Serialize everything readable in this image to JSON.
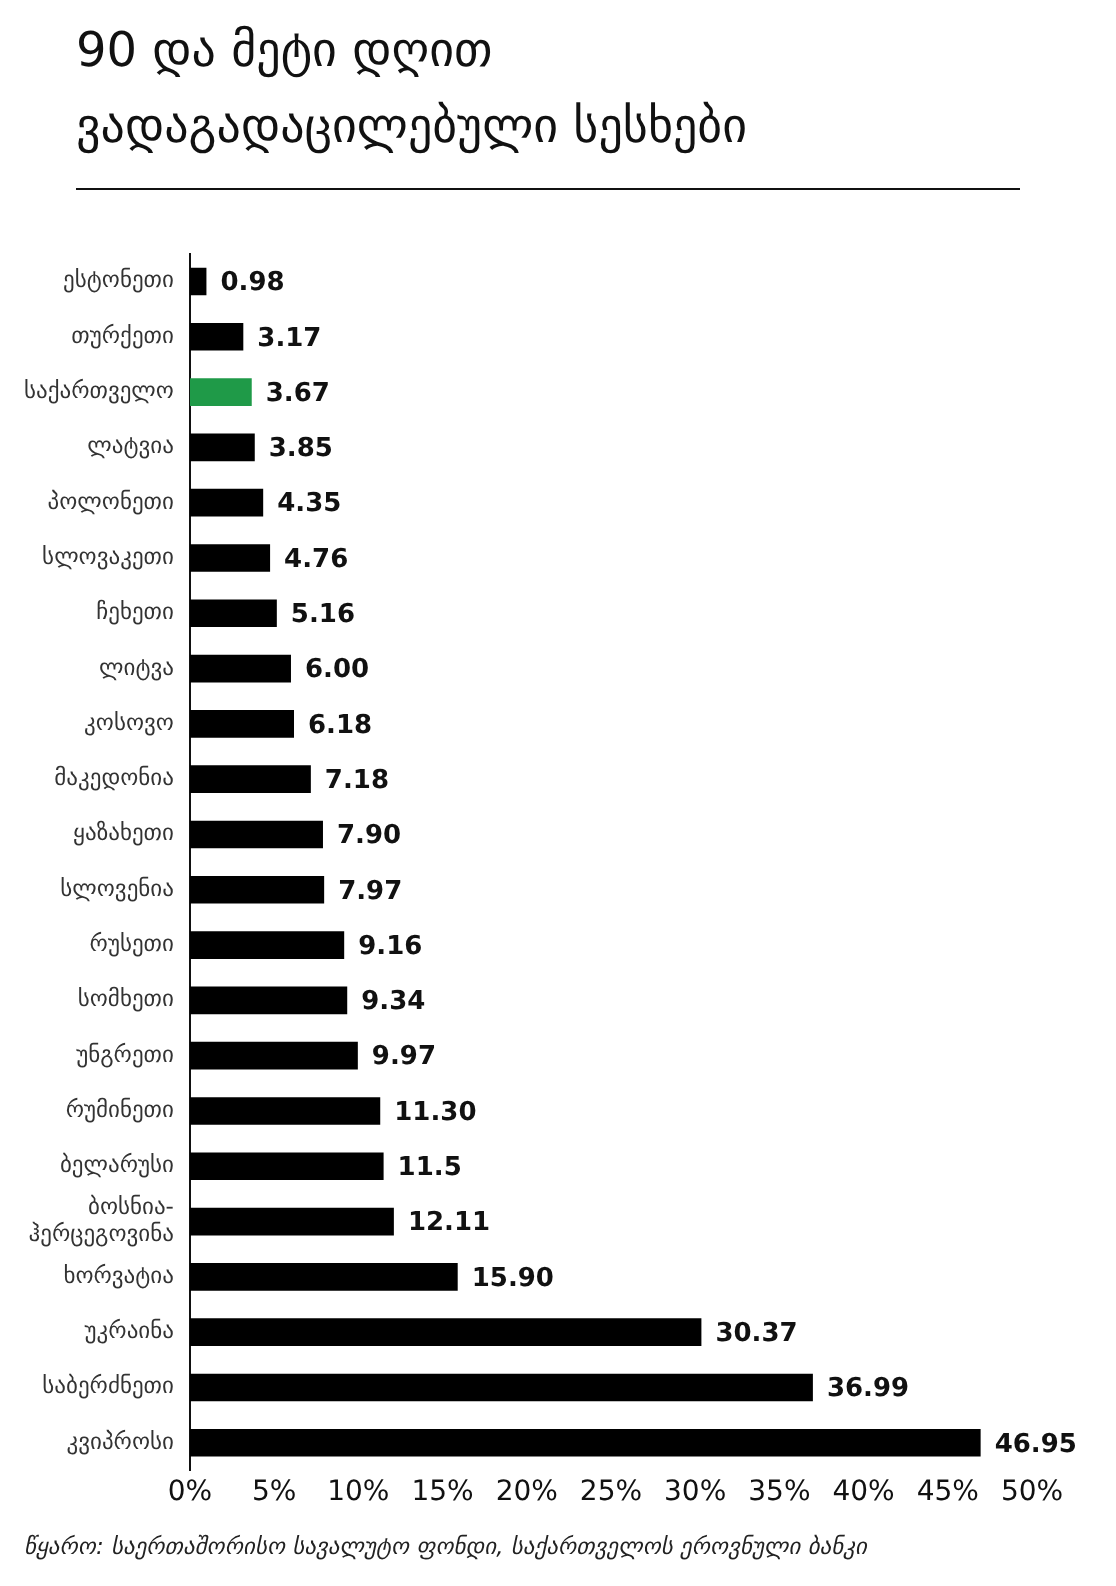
{
  "chart_data": {
    "type": "bar",
    "orientation": "horizontal",
    "title": "90 და მეტი დღით ვადაგადაცილებული სესხები",
    "categories": [
      "ესტონეთი",
      "თურქეთი",
      "საქართველო",
      "ლატვია",
      "პოლონეთი",
      "სლოვაკეთი",
      "ჩეხეთი",
      "ლიტვა",
      "კოსოვო",
      "მაკედონია",
      "ყაზახეთი",
      "სლოვენია",
      "რუსეთი",
      "სომხეთი",
      "უნგრეთი",
      "რუმინეთი",
      "ბელარუსი",
      "ბოსნია-ჰერცეგოვინა",
      "ხორვატია",
      "უკრაინა",
      "საბერძნეთი",
      "კვიპროსი"
    ],
    "values": [
      0.98,
      3.17,
      3.67,
      3.85,
      4.35,
      4.76,
      5.16,
      6.0,
      6.18,
      7.18,
      7.9,
      7.97,
      9.16,
      9.34,
      9.97,
      11.3,
      11.5,
      12.11,
      15.9,
      30.37,
      36.99,
      46.95
    ],
    "value_labels": [
      "0.98",
      "3.17",
      "3.67",
      "3.85",
      "4.35",
      "4.76",
      "5.16",
      "6.00",
      "6.18",
      "7.18",
      "7.90",
      "7.97",
      "9.16",
      "9.34",
      "9.97",
      "11.30",
      "11.5",
      "12.11",
      "15.90",
      "30.37",
      "36.99",
      "46.95"
    ],
    "colors": [
      "#000000",
      "#000000",
      "#1f9a48",
      "#000000",
      "#000000",
      "#000000",
      "#000000",
      "#000000",
      "#000000",
      "#000000",
      "#000000",
      "#000000",
      "#000000",
      "#000000",
      "#000000",
      "#000000",
      "#000000",
      "#000000",
      "#000000",
      "#000000",
      "#000000",
      "#000000"
    ],
    "xlim": [
      0,
      50
    ],
    "xticks": [
      {
        "value": 0,
        "label": "0%"
      },
      {
        "value": 5,
        "label": "5%"
      },
      {
        "value": 10,
        "label": "10%"
      },
      {
        "value": 15,
        "label": "15%"
      },
      {
        "value": 20,
        "label": "20%"
      },
      {
        "value": 25,
        "label": "25%"
      },
      {
        "value": 30,
        "label": "30%"
      },
      {
        "value": 35,
        "label": "35%"
      },
      {
        "value": 40,
        "label": "40%"
      },
      {
        "value": 45,
        "label": "45%"
      },
      {
        "value": 50,
        "label": "50%"
      }
    ],
    "grid": false,
    "legend": false,
    "annotations": [
      "წყარო: საერთაშორისო სავალუტო ფონდი, საქართველოს ეროვნული ბანკი"
    ]
  }
}
